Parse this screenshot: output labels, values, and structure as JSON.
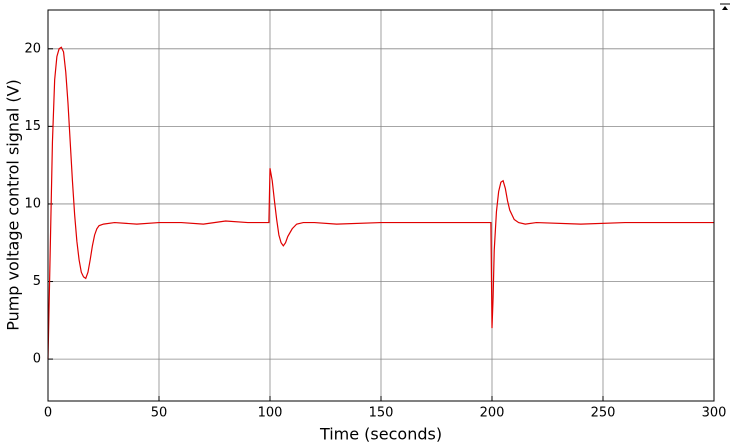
{
  "chart_data": {
    "type": "line",
    "x_label": "Time (seconds)",
    "y_label": "Pump voltage control signal (V)",
    "x": [
      0,
      1,
      2,
      3,
      4,
      5,
      6,
      7,
      8,
      9,
      10,
      11,
      12,
      13,
      14,
      15,
      16,
      17,
      18,
      19,
      20,
      21,
      22,
      23,
      25,
      30,
      40,
      50,
      60,
      70,
      80,
      90,
      99.5,
      100,
      101,
      102,
      103,
      104,
      105,
      106,
      107,
      108,
      110,
      112,
      115,
      120,
      130,
      150,
      170,
      190,
      199.5,
      200,
      200.5,
      201,
      202,
      203,
      204,
      205,
      206,
      207,
      208,
      210,
      212,
      215,
      220,
      240,
      260,
      280,
      300
    ],
    "series": [
      {
        "color": "#e00000",
        "values": [
          0,
          7,
          14,
          18,
          19.5,
          20,
          20.1,
          19.8,
          18.5,
          16.5,
          14,
          11.5,
          9.3,
          7.6,
          6.4,
          5.6,
          5.3,
          5.2,
          5.6,
          6.4,
          7.3,
          8.0,
          8.4,
          8.6,
          8.7,
          8.8,
          8.7,
          8.8,
          8.8,
          8.7,
          8.9,
          8.8,
          8.8,
          12.3,
          11.5,
          10.2,
          9.0,
          8.0,
          7.5,
          7.3,
          7.5,
          7.9,
          8.4,
          8.7,
          8.8,
          8.8,
          8.7,
          8.8,
          8.8,
          8.8,
          8.8,
          2,
          4,
          7,
          9.5,
          10.8,
          11.4,
          11.5,
          11.0,
          10.2,
          9.6,
          9.0,
          8.8,
          8.7,
          8.8,
          8.7,
          8.8,
          8.8,
          8.8
        ]
      }
    ],
    "xlim": [
      0,
      300
    ],
    "xticks": [
      0,
      50,
      100,
      150,
      200,
      250,
      300
    ],
    "ylim": [
      -2.7,
      22.5
    ],
    "yticks": [
      0,
      5,
      10,
      15,
      20
    ],
    "grid": true
  }
}
